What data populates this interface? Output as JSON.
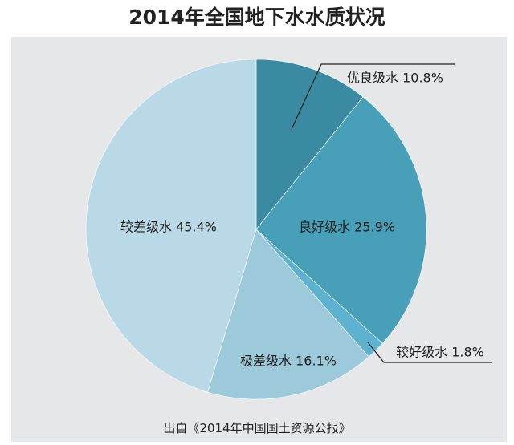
{
  "chart_data": {
    "type": "pie",
    "title": "2014年全国地下水水质状况",
    "source": "出自《2014年中国国土资源公报》",
    "slices": [
      {
        "label": "优良级水 10.8%",
        "value": 10.8,
        "color": "#3a8aa2"
      },
      {
        "label": "良好级水 25.9%",
        "value": 25.9,
        "color": "#479fb8"
      },
      {
        "label": "较好级水 1.8%",
        "value": 1.8,
        "color": "#5cb2cf"
      },
      {
        "label": "极差级水 16.1%",
        "value": 16.1,
        "color": "#9ccadb"
      },
      {
        "label": "较差级水 45.4%",
        "value": 45.4,
        "color": "#b9d9e7"
      }
    ],
    "start": "12 o'clock, clockwise",
    "legend": "none"
  }
}
